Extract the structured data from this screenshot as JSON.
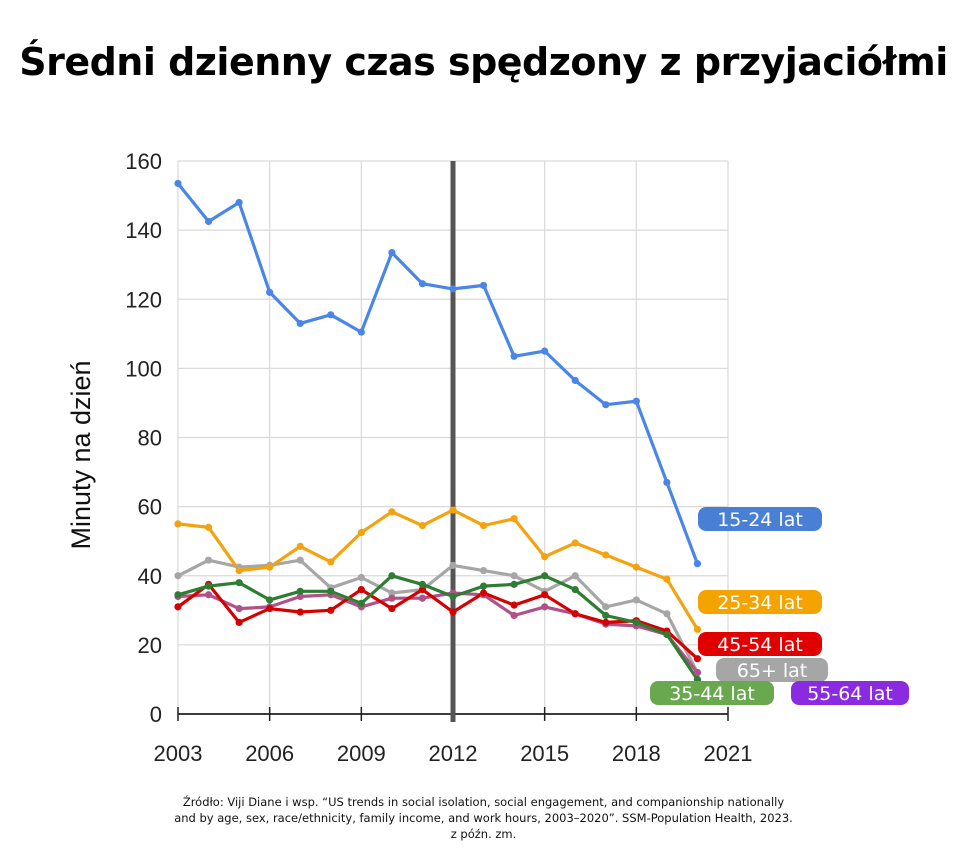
{
  "title": "Średni dzienny czas spędzony z przyjaciółmi",
  "source": {
    "line1": "Źródło: Viji Diane i wsp. “US trends in social isolation, social engagement, and companionship nationally",
    "line2": "and by age, sex, race/ethnicity, family income, and work hours, 2003–2020”. SSM-Population Health, 2023.",
    "line3": "z późn. zm."
  },
  "chart_data": {
    "type": "line",
    "title": "Średni dzienny czas spędzony z przyjaciółmi",
    "xlabel": "",
    "ylabel": "Minuty na dzień",
    "xlim": [
      2003,
      2021
    ],
    "ylim": [
      0,
      160
    ],
    "x_ticks": [
      "2003",
      "2006",
      "2009",
      "2012",
      "2015",
      "2018",
      "2021"
    ],
    "y_ticks": [
      "0",
      "20",
      "40",
      "60",
      "80",
      "100",
      "120",
      "140",
      "160"
    ],
    "grid": true,
    "vertical_marker": 2012,
    "marker_color": "#555555",
    "x": [
      2003,
      2004,
      2005,
      2006,
      2007,
      2008,
      2009,
      2010,
      2011,
      2012,
      2013,
      2014,
      2015,
      2016,
      2017,
      2018,
      2019,
      2020
    ],
    "series": [
      {
        "name": "15-24 lat",
        "color": "#4A86E8",
        "values": [
          153.5,
          142.5,
          148,
          122,
          113,
          115.5,
          110.5,
          133.5,
          124.5,
          123,
          124,
          103.5,
          105,
          96.5,
          89.5,
          90.5,
          67,
          43.5
        ]
      },
      {
        "name": "25-34 lat",
        "color": "#F4A30E",
        "values": [
          55,
          54,
          41.5,
          42.5,
          48.5,
          44,
          52.5,
          58.5,
          54.5,
          59,
          54.5,
          56.5,
          45.5,
          49.5,
          46,
          42.5,
          39,
          24.5
        ]
      },
      {
        "name": "35-44 lat",
        "color": "#2E7D32",
        "values": [
          34.5,
          37,
          38,
          33,
          35.5,
          35.5,
          32,
          40,
          37.5,
          34,
          37,
          37.5,
          40,
          36,
          28.5,
          26.5,
          23,
          10
        ]
      },
      {
        "name": "45-54 lat",
        "color": "#D50000",
        "values": [
          31,
          37.5,
          26.5,
          30.5,
          29.5,
          30,
          36,
          30.5,
          36,
          29.5,
          35,
          31.5,
          34.5,
          29,
          26.5,
          27,
          24,
          16
        ]
      },
      {
        "name": "55-64 lat",
        "color": "#B0518A",
        "values": [
          34,
          34.5,
          30.5,
          31,
          34,
          34.5,
          31,
          33.5,
          33.5,
          35,
          34.5,
          28.5,
          31,
          29,
          26,
          25.5,
          23,
          12
        ]
      },
      {
        "name": "65+ lat",
        "color": "#A6A6A6",
        "values": [
          40,
          44.5,
          42.5,
          43,
          44.5,
          36.5,
          39.5,
          35,
          36,
          43,
          41.5,
          40,
          35.5,
          40,
          31,
          33,
          29,
          12
        ]
      }
    ],
    "labels": [
      {
        "series": "15-24 lat",
        "text": "15-24 lat",
        "bg": "#4A7FD6"
      },
      {
        "series": "25-34 lat",
        "text": "25-34 lat",
        "bg": "#F5A300"
      },
      {
        "series": "45-54 lat",
        "text": "45-54 lat",
        "bg": "#E00000"
      },
      {
        "series": "65+ lat",
        "text": "65+ lat",
        "bg": "#A6A6A6"
      },
      {
        "series": "35-44 lat",
        "text": "35-44 lat",
        "bg": "#6AA84F"
      },
      {
        "series": "55-64 lat",
        "text": "55-64 lat",
        "bg": "#8A2BE2"
      }
    ]
  }
}
